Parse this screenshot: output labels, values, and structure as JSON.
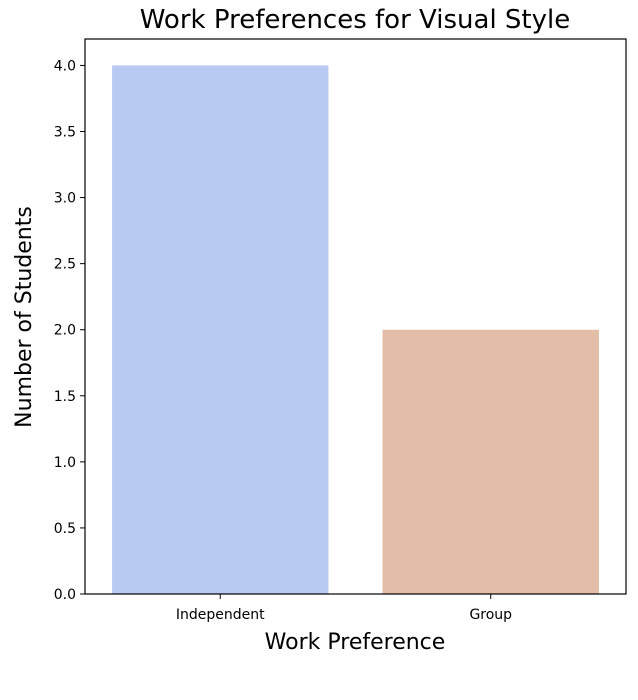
{
  "chart_data": {
    "type": "bar",
    "title": "Work Preferences for Visual Style",
    "xlabel": "Work Preference",
    "ylabel": "Number of Students",
    "categories": [
      "Independent",
      "Group"
    ],
    "values": [
      4,
      2
    ],
    "colors": [
      "#b8c9f2",
      "#e3bda7"
    ],
    "ylim": [
      0,
      4.2
    ],
    "yticks": [
      "0.0",
      "0.5",
      "1.0",
      "1.5",
      "2.0",
      "2.5",
      "3.0",
      "3.5",
      "4.0"
    ],
    "grid": false,
    "legend": "none"
  }
}
